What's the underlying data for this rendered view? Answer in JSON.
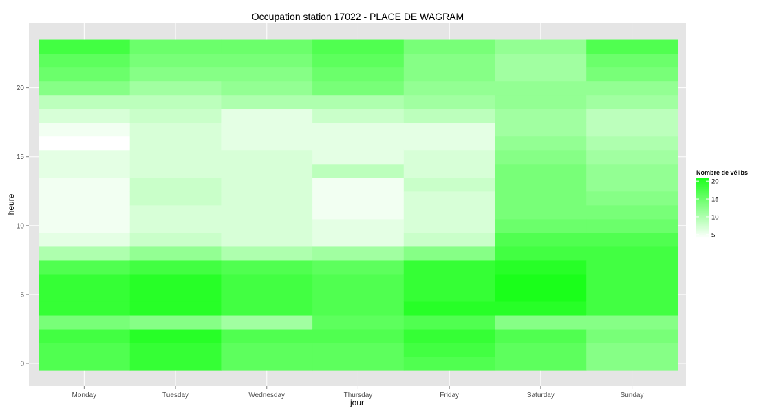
{
  "chart_data": {
    "type": "heatmap",
    "title": "Occupation station 17022 - PLACE DE WAGRAM",
    "xlabel": "jour",
    "ylabel": "heure",
    "categories": [
      "Monday",
      "Tuesday",
      "Wednesday",
      "Thursday",
      "Friday",
      "Saturday",
      "Sunday"
    ],
    "hours": [
      0,
      1,
      2,
      3,
      4,
      5,
      6,
      7,
      8,
      9,
      10,
      11,
      12,
      13,
      14,
      15,
      16,
      17,
      18,
      19,
      20,
      21,
      22,
      23
    ],
    "yticks": [
      0,
      5,
      10,
      15,
      20
    ],
    "ylim": [
      -0.7,
      24.2
    ],
    "grid": true,
    "legend": {
      "title": "Nombre de vélibs",
      "position": "right",
      "ticks": [
        5,
        10,
        15,
        20
      ],
      "range": [
        4,
        21
      ],
      "low_color": "#ffffff",
      "high_color": "#1aff1a"
    },
    "values": [
      [
        17,
        17,
        18,
        14,
        19,
        19,
        19,
        17,
        10,
        6,
        5,
        5,
        5,
        5,
        6,
        6,
        4,
        5,
        7,
        9,
        13,
        15,
        16,
        18
      ],
      [
        19,
        19,
        20,
        13,
        20,
        20,
        20,
        18,
        12,
        8,
        7,
        7,
        8,
        8,
        7,
        7,
        7,
        7,
        8,
        9,
        11,
        13,
        14,
        15
      ],
      [
        16,
        16,
        17,
        11,
        18,
        18,
        18,
        17,
        10,
        7,
        7,
        7,
        7,
        7,
        7,
        7,
        6,
        6,
        6,
        10,
        12,
        13,
        14,
        15
      ],
      [
        16,
        16,
        17,
        16,
        17,
        17,
        17,
        16,
        11,
        6,
        6,
        5,
        5,
        5,
        9,
        6,
        6,
        6,
        8,
        10,
        14,
        15,
        16,
        17
      ],
      [
        17,
        18,
        19,
        17,
        20,
        19,
        19,
        19,
        13,
        8,
        7,
        7,
        7,
        8,
        7,
        7,
        6,
        6,
        9,
        11,
        12,
        13,
        13,
        14
      ],
      [
        16,
        16,
        17,
        13,
        20,
        21,
        21,
        20,
        18,
        17,
        15,
        14,
        14,
        14,
        14,
        13,
        12,
        11,
        11,
        12,
        12,
        11,
        11,
        12
      ],
      [
        13,
        13,
        14,
        13,
        18,
        18,
        18,
        18,
        18,
        17,
        15,
        14,
        13,
        12,
        12,
        11,
        10,
        9,
        9,
        11,
        12,
        14,
        15,
        17
      ]
    ]
  }
}
